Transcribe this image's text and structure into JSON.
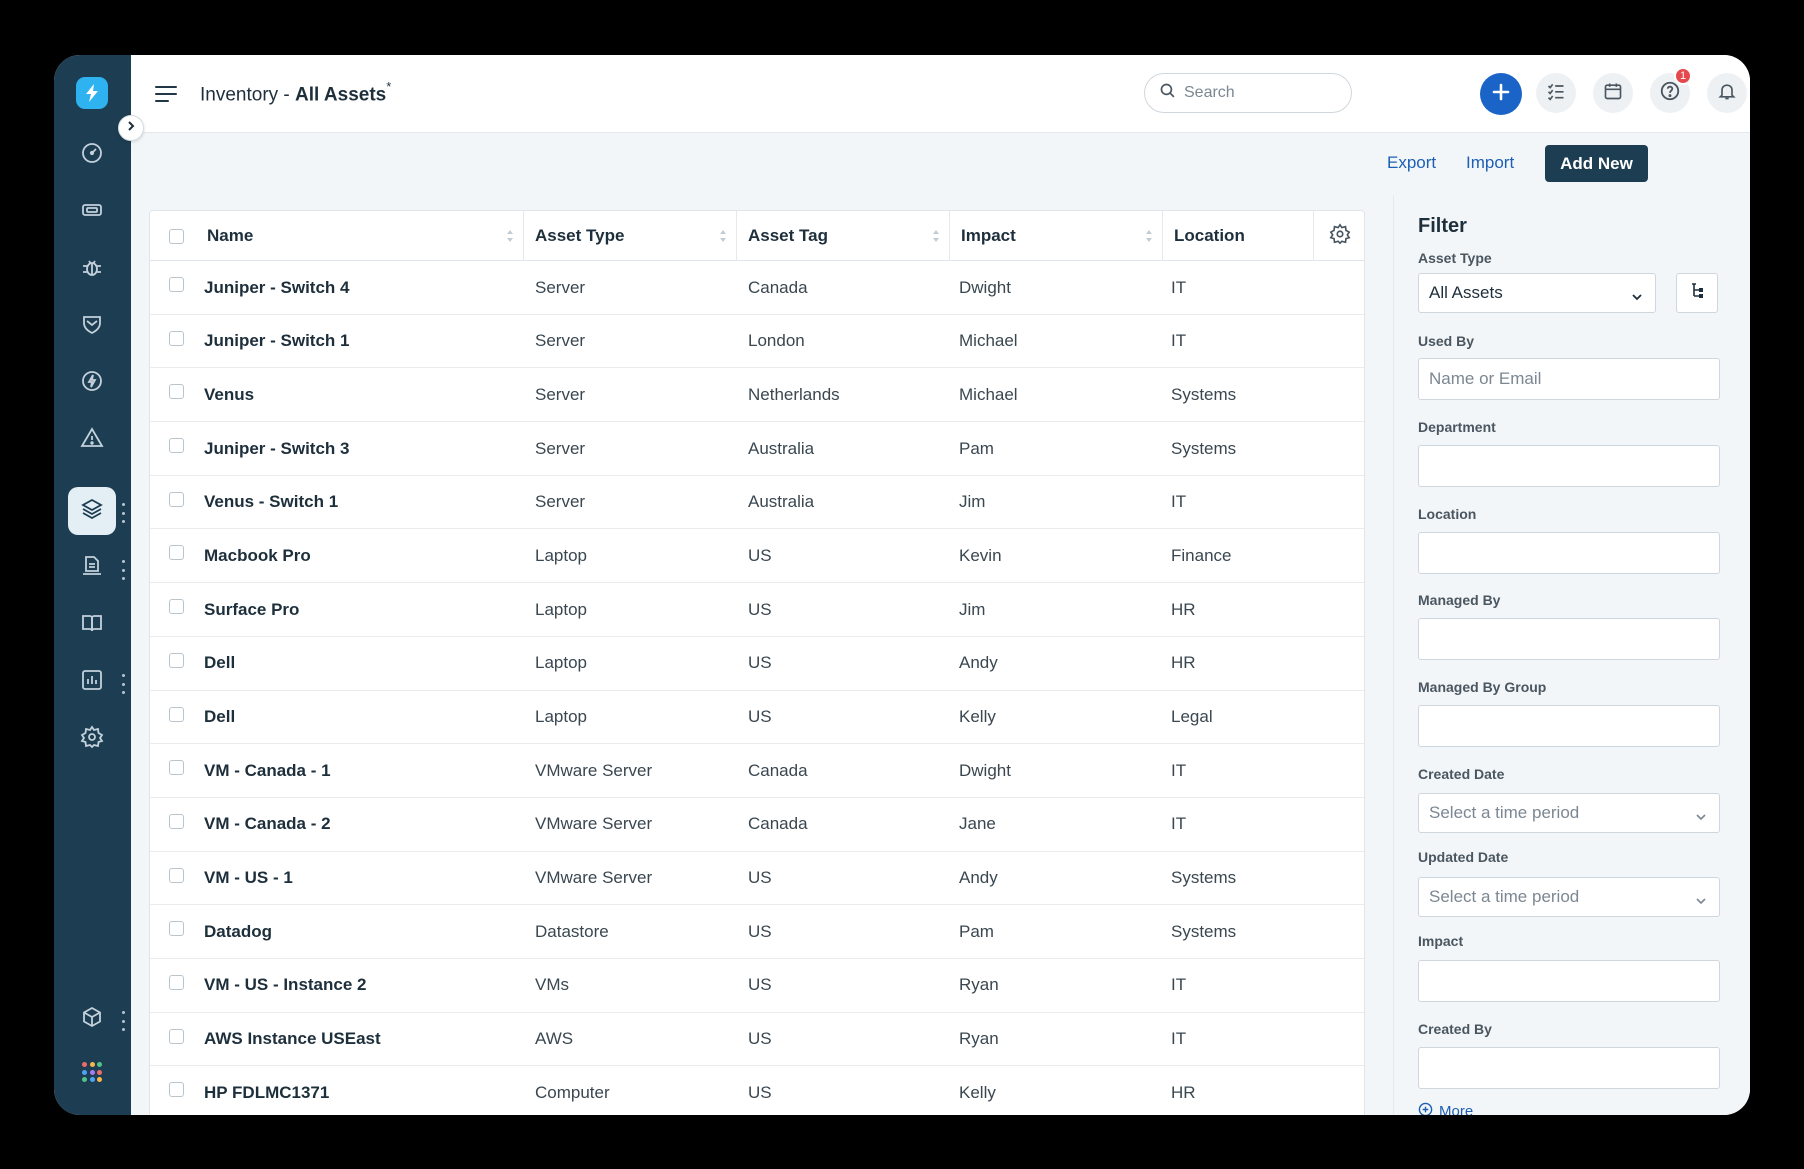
{
  "header": {
    "title_prefix": "Inventory - ",
    "title_main": "All Assets",
    "title_mark": "*",
    "search_placeholder": "Search",
    "help_badge": "1"
  },
  "toolbar": {
    "export_label": "Export",
    "import_label": "Import",
    "add_new_label": "Add New"
  },
  "table": {
    "columns": [
      "Name",
      "Asset Type",
      "Asset Tag",
      "Impact",
      "Location"
    ],
    "rows": [
      {
        "name": "Juniper - Switch 4",
        "asset_type": "Server",
        "asset_tag": "Canada",
        "impact": "Dwight",
        "location": "IT"
      },
      {
        "name": "Juniper - Switch 1",
        "asset_type": "Server",
        "asset_tag": "London",
        "impact": "Michael",
        "location": "IT"
      },
      {
        "name": "Venus",
        "asset_type": "Server",
        "asset_tag": "Netherlands",
        "impact": "Michael",
        "location": "Systems"
      },
      {
        "name": "Juniper - Switch 3",
        "asset_type": "Server",
        "asset_tag": "Australia",
        "impact": "Pam",
        "location": "Systems"
      },
      {
        "name": "Venus - Switch 1",
        "asset_type": "Server",
        "asset_tag": "Australia",
        "impact": "Jim",
        "location": "IT"
      },
      {
        "name": "Macbook Pro",
        "asset_type": "Laptop",
        "asset_tag": "US",
        "impact": "Kevin",
        "location": "Finance"
      },
      {
        "name": "Surface Pro",
        "asset_type": "Laptop",
        "asset_tag": "US",
        "impact": "Jim",
        "location": "HR"
      },
      {
        "name": "Dell",
        "asset_type": "Laptop",
        "asset_tag": "US",
        "impact": "Andy",
        "location": "HR"
      },
      {
        "name": "Dell",
        "asset_type": "Laptop",
        "asset_tag": "US",
        "impact": "Kelly",
        "location": "Legal"
      },
      {
        "name": "VM - Canada - 1",
        "asset_type": "VMware Server",
        "asset_tag": "Canada",
        "impact": "Dwight",
        "location": "IT"
      },
      {
        "name": "VM - Canada - 2",
        "asset_type": "VMware Server",
        "asset_tag": "Canada",
        "impact": "Jane",
        "location": "IT"
      },
      {
        "name": "VM - US - 1",
        "asset_type": "VMware Server",
        "asset_tag": "US",
        "impact": "Andy",
        "location": "Systems"
      },
      {
        "name": "Datadog",
        "asset_type": "Datastore",
        "asset_tag": "US",
        "impact": "Pam",
        "location": "Systems"
      },
      {
        "name": "VM - US - Instance 2",
        "asset_type": "VMs",
        "asset_tag": "US",
        "impact": "Ryan",
        "location": "IT"
      },
      {
        "name": "AWS Instance USEast",
        "asset_type": "AWS",
        "asset_tag": "US",
        "impact": "Ryan",
        "location": "IT"
      },
      {
        "name": "HP FDLMC1371",
        "asset_type": "Computer",
        "asset_tag": "US",
        "impact": "Kelly",
        "location": "HR"
      }
    ]
  },
  "filter": {
    "title": "Filter",
    "asset_type_label": "Asset Type",
    "asset_type_value": "All Assets",
    "used_by_label": "Used By",
    "used_by_placeholder": "Name or Email",
    "department_label": "Department",
    "location_label": "Location",
    "managed_by_label": "Managed By",
    "managed_by_group_label": "Managed By Group",
    "created_date_label": "Created Date",
    "created_date_placeholder": "Select a time period",
    "updated_date_label": "Updated Date",
    "updated_date_placeholder": "Select a time period",
    "impact_label": "Impact",
    "created_by_label": "Created By",
    "more_label": "More"
  },
  "colors": {
    "sidebar": "#1d3d52",
    "accent": "#1a64c8",
    "link": "#1d5fb4",
    "badge": "#e5484d"
  },
  "icons": {
    "sidebar": [
      "dashboard-icon",
      "ticket-icon",
      "bug-icon",
      "shield-icon",
      "bolt-icon",
      "warning-icon",
      "layers-icon",
      "document-icon",
      "book-icon",
      "chart-icon",
      "settings-icon",
      "box-icon",
      "apps-grid-icon"
    ],
    "header": [
      "search-icon",
      "plus-icon",
      "checklist-icon",
      "calendar-icon",
      "help-icon",
      "bell-icon"
    ]
  }
}
